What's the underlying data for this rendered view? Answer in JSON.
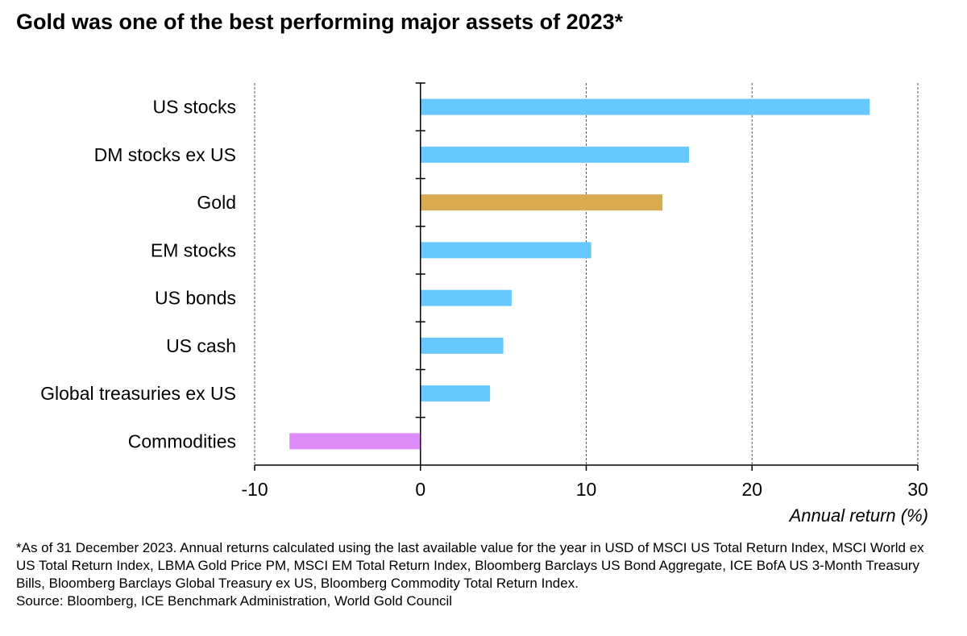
{
  "title": "Gold was one of the best performing major assets of 2023*",
  "chart_data": {
    "type": "bar",
    "orientation": "horizontal",
    "categories": [
      "US stocks",
      "DM stocks ex US",
      "Gold",
      "EM stocks",
      "US bonds",
      "US cash",
      "Global treasuries ex US",
      "Commodities"
    ],
    "values": [
      27.1,
      16.2,
      14.6,
      10.3,
      5.5,
      5.0,
      4.2,
      -7.9
    ],
    "colors": [
      "#66c8ff",
      "#66c8ff",
      "#d9ab4e",
      "#66c8ff",
      "#66c8ff",
      "#66c8ff",
      "#66c8ff",
      "#dd8cf8"
    ],
    "xlabel": "Annual return (%)",
    "xlim": [
      -10,
      30
    ],
    "xticks": [
      -10,
      0,
      10,
      20,
      30
    ],
    "grid": "vertical dashed"
  },
  "footnote": {
    "note": "*As of 31 December 2023. Annual returns calculated using the last available value for the year in USD of MSCI US Total Return Index, MSCI World ex US Total Return Index, LBMA Gold Price PM, MSCI EM Total Return Index, Bloomberg Barclays US Bond Aggregate, ICE BofA US 3-Month Treasury Bills, Bloomberg Barclays Global Treasury ex US, Bloomberg Commodity Total Return Index.",
    "source": "Source: Bloomberg, ICE Benchmark Administration, World Gold Council"
  }
}
